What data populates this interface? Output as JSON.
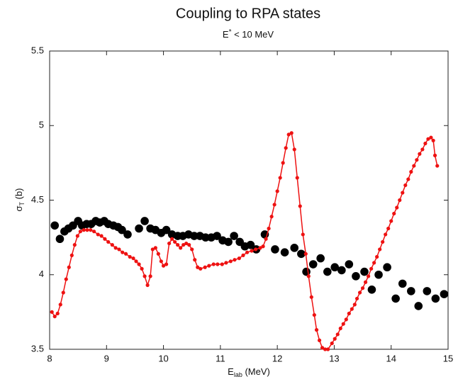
{
  "chart_data": {
    "type": "scatter",
    "title": "Coupling to RPA states",
    "subtitle": {
      "symbol": "E",
      "superscript": "*",
      "rest": " < 10 MeV"
    },
    "xlabel": {
      "symbol": "E",
      "subscript": "lab",
      "unit": " (MeV)"
    },
    "ylabel": {
      "symbol": "σ",
      "subscript": "T",
      "unit": " (b)"
    },
    "xlim": [
      8,
      15
    ],
    "ylim": [
      3.5,
      5.5
    ],
    "xticks": [
      8,
      9,
      10,
      11,
      12,
      13,
      14,
      15
    ],
    "yticks": [
      3.5,
      4,
      4.5,
      5,
      5.5
    ],
    "grid": false,
    "series": [
      {
        "color": "#000000",
        "style": "markers",
        "x": [
          8.09,
          8.18,
          8.26,
          8.33,
          8.41,
          8.5,
          8.57,
          8.65,
          8.73,
          8.81,
          8.88,
          8.96,
          9.03,
          9.12,
          9.2,
          9.27,
          9.37,
          9.57,
          9.67,
          9.77,
          9.86,
          9.96,
          10.05,
          10.15,
          10.25,
          10.34,
          10.44,
          10.54,
          10.64,
          10.74,
          10.84,
          10.94,
          11.04,
          11.14,
          11.24,
          11.34,
          11.43,
          11.53,
          11.63,
          11.78,
          11.96,
          12.13,
          12.3,
          12.42,
          12.51,
          12.63,
          12.76,
          12.88,
          13.01,
          13.13,
          13.26,
          13.38,
          13.53,
          13.66,
          13.78,
          13.93,
          14.08,
          14.2,
          14.35,
          14.48,
          14.63,
          14.78,
          14.93
        ],
        "values": [
          4.33,
          4.24,
          4.29,
          4.31,
          4.33,
          4.36,
          4.33,
          4.34,
          4.34,
          4.36,
          4.35,
          4.36,
          4.34,
          4.33,
          4.32,
          4.3,
          4.27,
          4.31,
          4.36,
          4.31,
          4.3,
          4.28,
          4.3,
          4.27,
          4.26,
          4.26,
          4.27,
          4.26,
          4.26,
          4.25,
          4.25,
          4.26,
          4.23,
          4.22,
          4.26,
          4.22,
          4.19,
          4.2,
          4.17,
          4.27,
          4.17,
          4.15,
          4.18,
          4.14,
          4.02,
          4.07,
          4.11,
          4.02,
          4.05,
          4.03,
          4.07,
          3.99,
          4.02,
          3.9,
          4.0,
          4.05,
          3.84,
          3.94,
          3.89,
          3.79,
          3.89,
          3.84,
          3.87
        ]
      },
      {
        "color": "#ee1111",
        "style": "line",
        "x": [
          8.04,
          8.09,
          8.14,
          8.19,
          8.24,
          8.29,
          8.34,
          8.39,
          8.44,
          8.49,
          8.54,
          8.6,
          8.66,
          8.72,
          8.78,
          8.85,
          8.91,
          8.97,
          9.03,
          9.1,
          9.16,
          9.22,
          9.28,
          9.34,
          9.41,
          9.47,
          9.52,
          9.57,
          9.62,
          9.67,
          9.72,
          9.77,
          9.81,
          9.86,
          9.91,
          9.96,
          10.0,
          10.05,
          10.1,
          10.15,
          10.2,
          10.25,
          10.3,
          10.35,
          10.4,
          10.45,
          10.5,
          10.55,
          10.6,
          10.65,
          10.73,
          10.8,
          10.88,
          10.95,
          11.03,
          11.1,
          11.18,
          11.25,
          11.33,
          11.4,
          11.47,
          11.55,
          11.62,
          11.7,
          11.75,
          11.8,
          11.85,
          11.9,
          11.95,
          12.0,
          12.05,
          12.1,
          12.15,
          12.2,
          12.25,
          12.3,
          12.35,
          12.4,
          12.45,
          12.5,
          12.55,
          12.6,
          12.65,
          12.69,
          12.74,
          12.79,
          12.84,
          12.89,
          12.96,
          13.01,
          13.06,
          13.11,
          13.16,
          13.21,
          13.26,
          13.31,
          13.36,
          13.4,
          13.45,
          13.5,
          13.55,
          13.6,
          13.65,
          13.7,
          13.75,
          13.8,
          13.85,
          13.9,
          13.95,
          14.0,
          14.05,
          14.1,
          14.15,
          14.2,
          14.25,
          14.3,
          14.35,
          14.4,
          14.45,
          14.5,
          14.55,
          14.6,
          14.65,
          14.7,
          14.74,
          14.77,
          14.81
        ],
        "values": [
          3.75,
          3.72,
          3.74,
          3.8,
          3.88,
          3.97,
          4.05,
          4.13,
          4.2,
          4.26,
          4.29,
          4.3,
          4.3,
          4.3,
          4.29,
          4.27,
          4.26,
          4.24,
          4.22,
          4.2,
          4.18,
          4.17,
          4.15,
          4.14,
          4.12,
          4.11,
          4.09,
          4.07,
          4.04,
          3.99,
          3.93,
          3.99,
          4.17,
          4.18,
          4.14,
          4.09,
          4.06,
          4.07,
          4.21,
          4.24,
          4.22,
          4.2,
          4.18,
          4.2,
          4.21,
          4.2,
          4.17,
          4.1,
          4.05,
          4.04,
          4.05,
          4.06,
          4.07,
          4.07,
          4.07,
          4.08,
          4.09,
          4.1,
          4.11,
          4.13,
          4.15,
          4.16,
          4.17,
          4.18,
          4.19,
          4.24,
          4.31,
          4.39,
          4.47,
          4.56,
          4.65,
          4.75,
          4.85,
          4.94,
          4.95,
          4.84,
          4.65,
          4.46,
          4.27,
          4.14,
          3.99,
          3.85,
          3.73,
          3.63,
          3.56,
          3.51,
          3.5,
          3.5,
          3.54,
          3.57,
          3.6,
          3.64,
          3.67,
          3.7,
          3.74,
          3.77,
          3.8,
          3.84,
          3.88,
          3.91,
          3.95,
          3.99,
          4.04,
          4.08,
          4.12,
          4.17,
          4.22,
          4.27,
          4.31,
          4.36,
          4.41,
          4.45,
          4.5,
          4.55,
          4.6,
          4.64,
          4.69,
          4.73,
          4.77,
          4.81,
          4.84,
          4.88,
          4.91,
          4.92,
          4.9,
          4.8,
          4.73
        ]
      }
    ]
  }
}
